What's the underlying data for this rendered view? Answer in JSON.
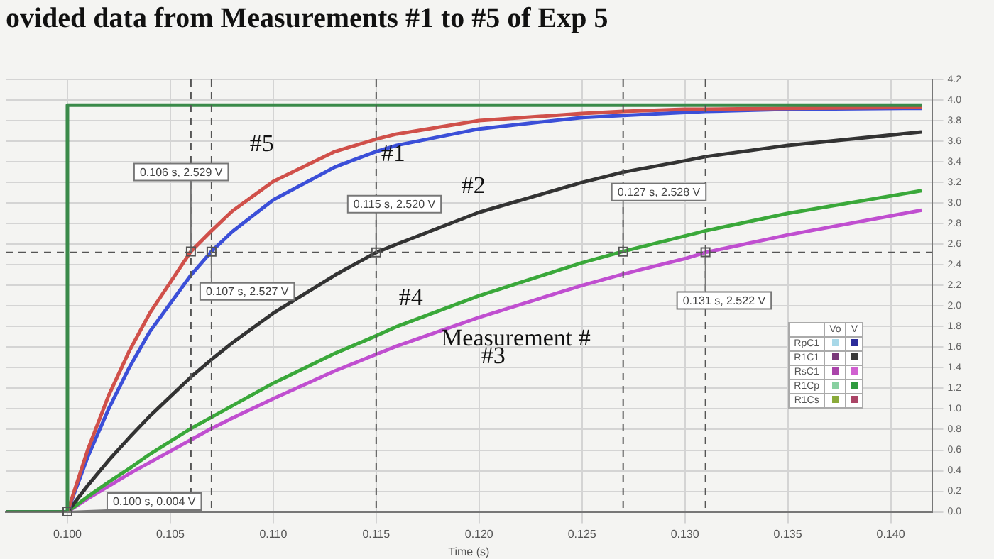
{
  "chart_data": {
    "type": "line",
    "title": "ovided data from Measurements #1 to #5 of Exp 5",
    "xlabel": "Time (s)",
    "x": [
      0.097,
      0.1,
      0.101,
      0.102,
      0.103,
      0.104,
      0.106,
      0.107,
      0.108,
      0.11,
      0.113,
      0.115,
      0.116,
      0.12,
      0.125,
      0.127,
      0.13,
      0.131,
      0.135,
      0.1415
    ],
    "series": [
      {
        "x": [
          0.097,
          0.1,
          0.1,
          0.1415
        ],
        "values": [
          0,
          0,
          3.95,
          3.95
        ],
        "color": "#3a8a4a"
      },
      {
        "name": "#5",
        "color": "#d0504a",
        "values": [
          0,
          0,
          0.61,
          1.13,
          1.56,
          1.93,
          2.53,
          2.73,
          2.92,
          3.21,
          3.5,
          3.62,
          3.67,
          3.8,
          3.87,
          3.89,
          3.91,
          3.91,
          3.92,
          3.93
        ]
      },
      {
        "name": "#1",
        "color": "#3b4fd8",
        "values": [
          0,
          0,
          0.54,
          1.0,
          1.4,
          1.75,
          2.3,
          2.53,
          2.72,
          3.03,
          3.35,
          3.5,
          3.56,
          3.72,
          3.83,
          3.85,
          3.88,
          3.89,
          3.91,
          3.92
        ]
      },
      {
        "name": "#2",
        "color": "#333333",
        "values": [
          0,
          0,
          0.26,
          0.5,
          0.72,
          0.93,
          1.31,
          1.48,
          1.64,
          1.93,
          2.3,
          2.52,
          2.6,
          2.91,
          3.2,
          3.3,
          3.41,
          3.45,
          3.56,
          3.69
        ]
      },
      {
        "name": "#4",
        "color": "#3aa83a",
        "values": [
          0,
          0,
          0.15,
          0.29,
          0.42,
          0.56,
          0.81,
          0.92,
          1.03,
          1.25,
          1.54,
          1.71,
          1.8,
          2.1,
          2.42,
          2.53,
          2.68,
          2.73,
          2.9,
          3.12
        ]
      },
      {
        "name": "#3",
        "color": "#c04fd0",
        "values": [
          0,
          0,
          0.13,
          0.25,
          0.37,
          0.48,
          0.7,
          0.81,
          0.91,
          1.1,
          1.37,
          1.53,
          1.61,
          1.89,
          2.2,
          2.31,
          2.46,
          2.52,
          2.69,
          2.93
        ]
      }
    ],
    "xlim": [
      0.097,
      0.142
    ],
    "xticks": [
      {
        "value": 0.1,
        "label": "0.100"
      },
      {
        "value": 0.105,
        "label": "0.105"
      },
      {
        "value": 0.11,
        "label": "0.110"
      },
      {
        "value": 0.115,
        "label": "0.115"
      },
      {
        "value": 0.12,
        "label": "0.120"
      },
      {
        "value": 0.125,
        "label": "0.125"
      },
      {
        "value": 0.13,
        "label": "0.130"
      },
      {
        "value": 0.135,
        "label": "0.135"
      },
      {
        "value": 0.14,
        "label": "0.140"
      }
    ],
    "ylim": [
      0,
      4.2
    ],
    "yticks": [
      {
        "value": 0,
        "label": "0.0"
      },
      0.2,
      0.4,
      0.6,
      0.8,
      {
        "value": 1,
        "label": "1.0"
      },
      1.2,
      1.4,
      1.6,
      1.8,
      {
        "value": 2,
        "label": "2.0"
      },
      2.2,
      2.4,
      2.6,
      2.8,
      {
        "value": 3,
        "label": "3.0"
      },
      3.2,
      3.4,
      3.6,
      3.8,
      {
        "value": 4,
        "label": "4.0"
      },
      4.2
    ],
    "ref_lines": [
      {
        "axis": "y",
        "value": 2.52,
        "color": "#555555",
        "line_style": "dashed"
      },
      {
        "axis": "x",
        "value": 0.106,
        "color": "#555555",
        "line_style": "dashed"
      },
      {
        "axis": "x",
        "value": 0.107,
        "color": "#555555",
        "line_style": "dashed"
      },
      {
        "axis": "x",
        "value": 0.115,
        "color": "#555555",
        "line_style": "dashed"
      },
      {
        "axis": "x",
        "value": 0.127,
        "color": "#555555",
        "line_style": "dashed"
      },
      {
        "axis": "x",
        "value": 0.131,
        "color": "#555555",
        "line_style": "dashed"
      }
    ],
    "annotations": [
      {
        "text": "0.106 s, 2.529 V",
        "x": 0.106,
        "y": 2.529
      },
      {
        "text": "0.107 s, 2.527 V",
        "x": 0.107,
        "y": 2.527
      },
      {
        "text": "0.115 s, 2.520 V",
        "x": 0.115,
        "y": 2.52
      },
      {
        "text": "0.127 s, 2.528 V",
        "x": 0.127,
        "y": 2.528
      },
      {
        "text": "0.131 s, 2.522 V",
        "x": 0.131,
        "y": 2.522
      },
      {
        "text": "0.100 s, 0.004 V",
        "x": 0.1,
        "y": 0.004
      },
      "Measurement #",
      "Vo",
      "V",
      "RpC1",
      "R1C1",
      "RsC1",
      "R1Cp",
      "R1Cs"
    ],
    "grid": true,
    "legend": false,
    "marker": "none",
    "line_style": "solid"
  }
}
